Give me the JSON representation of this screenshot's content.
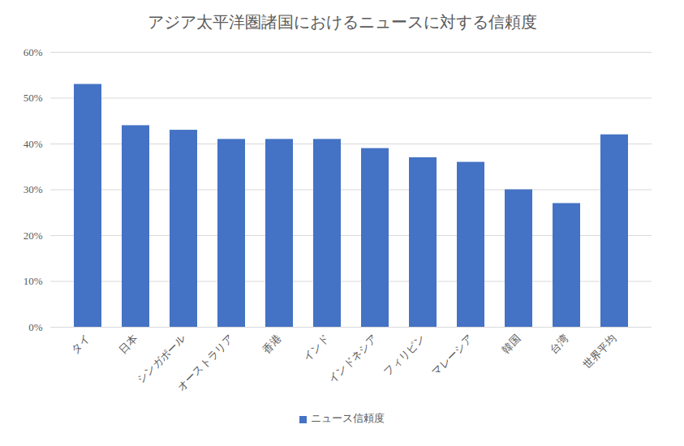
{
  "chart_data": {
    "type": "bar",
    "title": "アジア太平洋圏諸国におけるニュースに対する信頼度",
    "categories": [
      "タイ",
      "日本",
      "シンガポール",
      "オーストラリア",
      "香港",
      "インド",
      "インドネシア",
      "フィリピン",
      "マレーシア",
      "韓国",
      "台湾",
      "世界平均"
    ],
    "series": [
      {
        "name": "ニュース信頼度",
        "color": "#4472c4",
        "values": [
          53,
          44,
          43,
          41,
          41,
          41,
          39,
          37,
          36,
          30,
          27,
          42
        ]
      }
    ],
    "ylim": [
      0,
      60
    ],
    "yticks": [
      {
        "value": 0,
        "label": "0%"
      },
      {
        "value": 10,
        "label": "10%"
      },
      {
        "value": 20,
        "label": "20%"
      },
      {
        "value": 30,
        "label": "30%"
      },
      {
        "value": 40,
        "label": "40%"
      },
      {
        "value": 50,
        "label": "50%"
      },
      {
        "value": 60,
        "label": "60%"
      }
    ],
    "grid": true,
    "legend": "bottom"
  }
}
